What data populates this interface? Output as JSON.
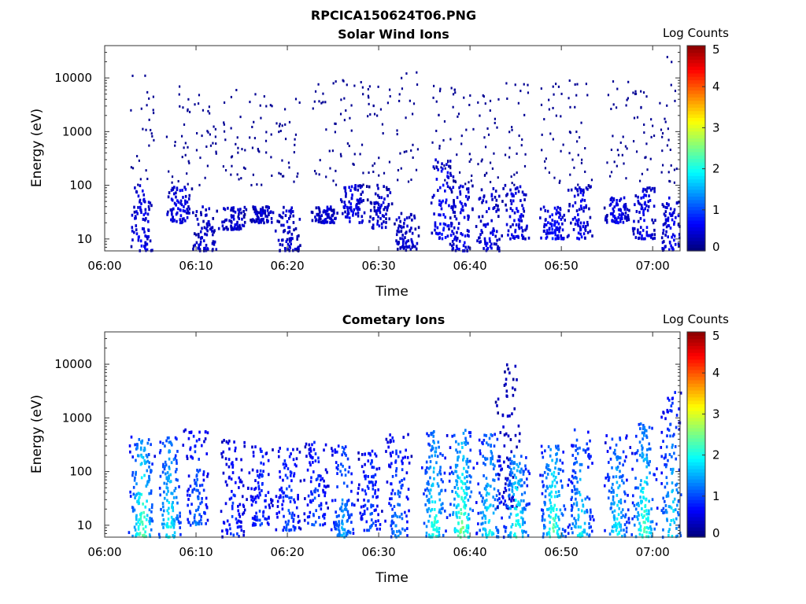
{
  "figure_title": "RPCICA150624T06.PNG",
  "chart_data": [
    {
      "type": "heatmap",
      "title": "Solar Wind Ions",
      "xlabel": "Time",
      "ylabel": "Energy (eV)",
      "x_range": [
        "06:00",
        "07:03"
      ],
      "x_ticks": [
        "06:00",
        "06:10",
        "06:20",
        "06:30",
        "06:40",
        "06:50",
        "07:00"
      ],
      "y_scale": "log",
      "y_range": [
        6,
        40000
      ],
      "y_ticks": [
        "10",
        "100",
        "1000",
        "10000"
      ],
      "colorbar": {
        "label": "Log Counts",
        "min": 0,
        "max": 5,
        "ticks": [
          "0",
          "1",
          "2",
          "3",
          "4",
          "5"
        ],
        "colormap": "jet"
      },
      "bursts": [
        {
          "t": "06:04",
          "low": [
            6,
            100
          ],
          "high": [
            100,
            12000
          ],
          "level": 0.3
        },
        {
          "t": "06:08",
          "low": [
            20,
            100
          ],
          "high": [
            100,
            8000
          ],
          "level": 0.3
        },
        {
          "t": "06:11",
          "low": [
            6,
            40
          ],
          "high": [
            100,
            6000
          ],
          "level": 0.2
        },
        {
          "t": "06:14",
          "low": [
            15,
            40
          ],
          "high": [
            100,
            7000
          ],
          "level": 0.2
        },
        {
          "t": "06:17",
          "low": [
            20,
            40
          ],
          "high": [
            100,
            6000
          ],
          "level": 0.2
        },
        {
          "t": "06:20",
          "low": [
            6,
            40
          ],
          "high": [
            100,
            7000
          ],
          "level": 0.2
        },
        {
          "t": "06:24",
          "low": [
            20,
            40
          ],
          "high": [
            100,
            9000
          ],
          "level": 0.2
        },
        {
          "t": "06:27",
          "low": [
            20,
            100
          ],
          "high": [
            100,
            13000
          ],
          "level": 0.3
        },
        {
          "t": "06:30",
          "low": [
            15,
            100
          ],
          "high": [
            100,
            9000
          ],
          "level": 0.2
        },
        {
          "t": "06:33",
          "low": [
            6,
            30
          ],
          "high": [
            100,
            15000
          ],
          "level": 0.2
        },
        {
          "t": "06:37",
          "low": [
            10,
            300
          ],
          "high": [
            100,
            8000
          ],
          "level": 0.4
        },
        {
          "t": "06:39",
          "low": [
            6,
            100
          ],
          "high": [
            100,
            7000
          ],
          "level": 0.3
        },
        {
          "t": "06:42",
          "low": [
            6,
            100
          ],
          "high": [
            100,
            5000
          ],
          "level": 0.3
        },
        {
          "t": "06:45",
          "low": [
            10,
            100
          ],
          "high": [
            100,
            9000
          ],
          "level": 0.3
        },
        {
          "t": "06:49",
          "low": [
            10,
            40
          ],
          "high": [
            100,
            8000
          ],
          "level": 0.4
        },
        {
          "t": "06:52",
          "low": [
            10,
            100
          ],
          "high": [
            100,
            9000
          ],
          "level": 0.3
        },
        {
          "t": "06:56",
          "low": [
            20,
            60
          ],
          "high": [
            100,
            9000
          ],
          "level": 0.3
        },
        {
          "t": "06:59",
          "low": [
            10,
            100
          ],
          "high": [
            100,
            6000
          ],
          "level": 0.3
        },
        {
          "t": "07:02",
          "low": [
            6,
            60
          ],
          "high": [
            100,
            35000
          ],
          "level": 0.3
        }
      ]
    },
    {
      "type": "heatmap",
      "title": "Cometary Ions",
      "xlabel": "Time",
      "ylabel": "Energy (eV)",
      "x_range": [
        "06:00",
        "07:03"
      ],
      "x_ticks": [
        "06:00",
        "06:10",
        "06:20",
        "06:30",
        "06:40",
        "06:50",
        "07:00"
      ],
      "y_scale": "log",
      "y_range": [
        6,
        40000
      ],
      "y_ticks": [
        "10",
        "100",
        "1000",
        "10000"
      ],
      "colorbar": {
        "label": "Log Counts",
        "min": 0,
        "max": 5,
        "ticks": [
          "0",
          "1",
          "2",
          "3",
          "4",
          "5"
        ],
        "colormap": "jet"
      },
      "bursts": [
        {
          "t": "06:04",
          "low": [
            6,
            450
          ],
          "level": 1.7
        },
        {
          "t": "06:07",
          "low": [
            6,
            450
          ],
          "level": 1.4
        },
        {
          "t": "06:10",
          "low": [
            10,
            600
          ],
          "level": 0.8
        },
        {
          "t": "06:14",
          "low": [
            6,
            400
          ],
          "level": 0.6
        },
        {
          "t": "06:17",
          "low": [
            10,
            300
          ],
          "level": 0.6
        },
        {
          "t": "06:20",
          "low": [
            8,
            300
          ],
          "level": 0.7
        },
        {
          "t": "06:23",
          "low": [
            10,
            350
          ],
          "level": 0.7
        },
        {
          "t": "06:26",
          "low": [
            6,
            300
          ],
          "level": 1.0
        },
        {
          "t": "06:29",
          "low": [
            8,
            250
          ],
          "level": 0.7
        },
        {
          "t": "06:32",
          "low": [
            6,
            500
          ],
          "level": 0.9
        },
        {
          "t": "06:36",
          "low": [
            6,
            600
          ],
          "level": 1.5
        },
        {
          "t": "06:39",
          "low": [
            6,
            600
          ],
          "level": 1.8
        },
        {
          "t": "06:42",
          "low": [
            6,
            500
          ],
          "level": 1.4
        },
        {
          "t": "06:44",
          "low": [
            20,
            10000
          ],
          "level": 0.2
        },
        {
          "t": "06:45",
          "low": [
            6,
            200
          ],
          "level": 1.5
        },
        {
          "t": "06:49",
          "low": [
            6,
            300
          ],
          "level": 1.6
        },
        {
          "t": "06:52",
          "low": [
            6,
            600
          ],
          "level": 1.3
        },
        {
          "t": "06:56",
          "low": [
            6,
            500
          ],
          "level": 1.3
        },
        {
          "t": "06:59",
          "low": [
            6,
            800
          ],
          "level": 1.6
        },
        {
          "t": "07:02",
          "low": [
            6,
            3000
          ],
          "level": 1.3
        }
      ]
    }
  ]
}
